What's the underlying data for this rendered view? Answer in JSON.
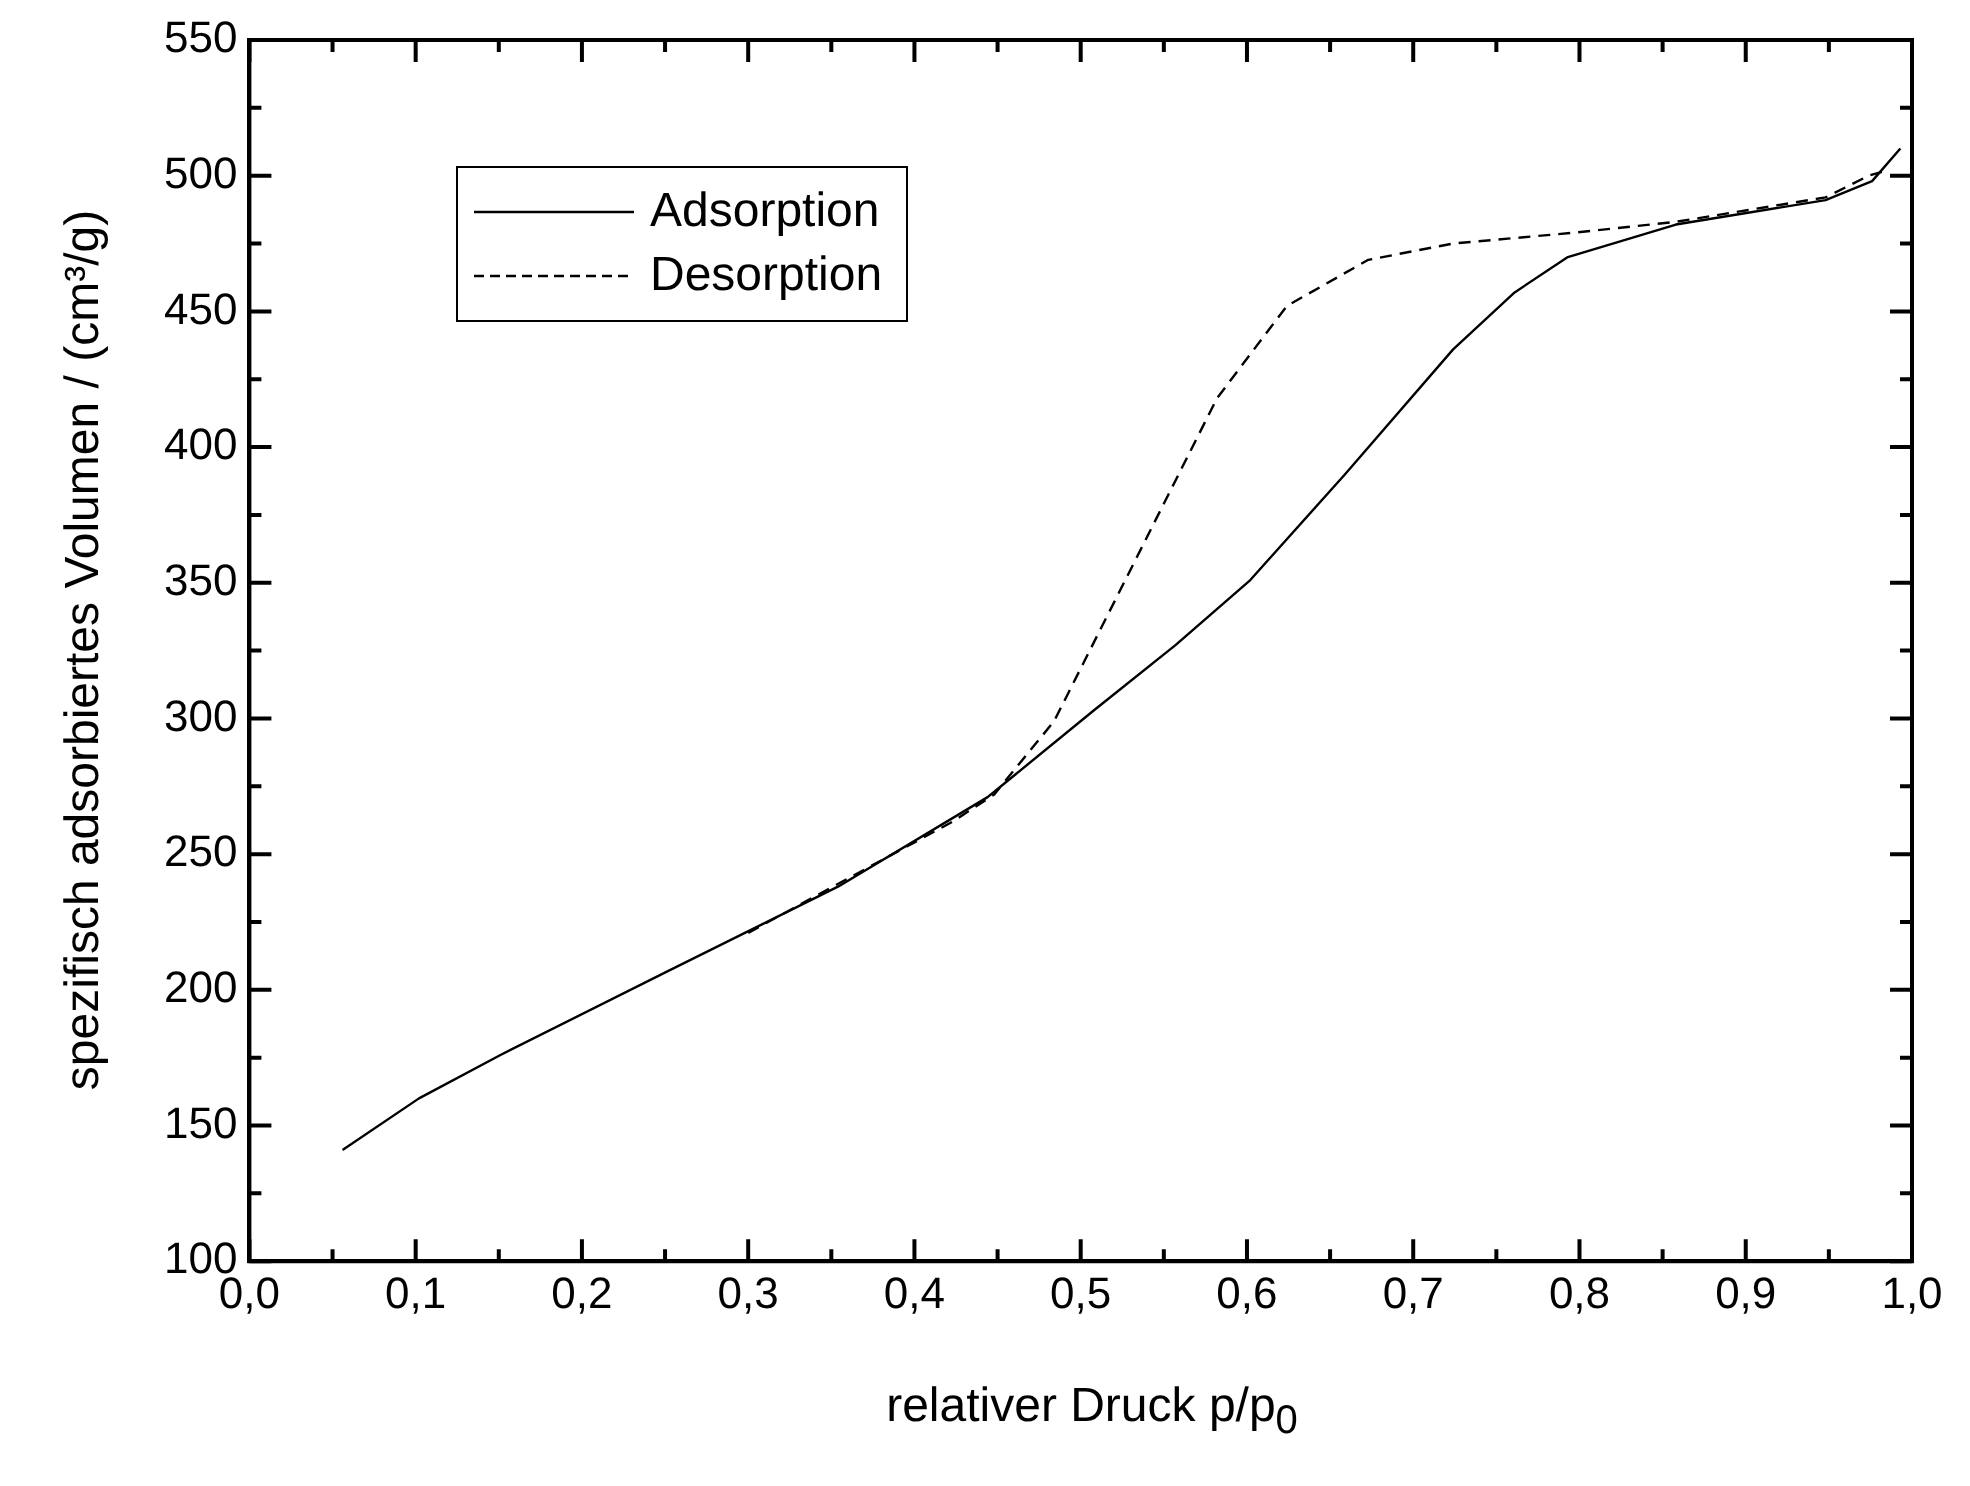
{
  "chart_data": {
    "type": "line",
    "xlabel": "relativer Druck p/p$_{0}$",
    "ylabel": "spezifisch adsorbiertes Volumen / (cm³/g)",
    "xlim": [
      0,
      1
    ],
    "ylim": [
      100,
      550
    ],
    "xticks": [
      {
        "value": 0,
        "label": "0,0"
      },
      {
        "value": 0.05,
        "label": null
      },
      {
        "value": 0.1,
        "label": "0,1"
      },
      {
        "value": 0.15,
        "label": null
      },
      {
        "value": 0.2,
        "label": "0,2"
      },
      {
        "value": 0.25,
        "label": null
      },
      {
        "value": 0.3,
        "label": "0,3"
      },
      {
        "value": 0.35,
        "label": null
      },
      {
        "value": 0.4,
        "label": "0,4"
      },
      {
        "value": 0.45,
        "label": null
      },
      {
        "value": 0.5,
        "label": "0,5"
      },
      {
        "value": 0.55,
        "label": null
      },
      {
        "value": 0.6,
        "label": "0,6"
      },
      {
        "value": 0.65,
        "label": null
      },
      {
        "value": 0.7,
        "label": "0,7"
      },
      {
        "value": 0.75,
        "label": null
      },
      {
        "value": 0.8,
        "label": "0,8"
      },
      {
        "value": 0.85,
        "label": null
      },
      {
        "value": 0.9,
        "label": "0,9"
      },
      {
        "value": 0.95,
        "label": null
      },
      {
        "value": 1,
        "label": "1,0"
      }
    ],
    "yticks": [
      100,
      {
        "value": 125,
        "label": null
      },
      150,
      {
        "value": 175,
        "label": null
      },
      200,
      {
        "value": 225,
        "label": null
      },
      250,
      {
        "value": 275,
        "label": null
      },
      300,
      {
        "value": 325,
        "label": null
      },
      350,
      {
        "value": 375,
        "label": null
      },
      400,
      {
        "value": 425,
        "label": null
      },
      450,
      {
        "value": 475,
        "label": null
      },
      500,
      {
        "value": 525,
        "label": null
      },
      550
    ],
    "grid": false,
    "legend": "top left",
    "marker": "none",
    "series": [
      {
        "name": "Adsorption",
        "color": "#000000",
        "line_style": "solid",
        "x": [
          0.056,
          0.102,
          0.151,
          0.252,
          0.354,
          0.444,
          0.508,
          0.557,
          0.602,
          0.659,
          0.724,
          0.761,
          0.793,
          0.858,
          0.948,
          0.976,
          0.993
        ],
        "values": [
          141,
          160,
          176,
          207,
          238,
          271,
          303,
          327,
          351,
          390,
          436,
          457,
          470,
          482,
          491,
          498,
          510
        ]
      },
      {
        "name": "Desorption",
        "color": "#000000",
        "line_style": "dashed",
        "x": [
          0.3,
          0.387,
          0.423,
          0.448,
          0.484,
          0.582,
          0.624,
          0.673,
          0.724,
          0.797,
          0.858,
          0.948,
          0.974,
          0.985
        ],
        "values": [
          221,
          250,
          262,
          272,
          299,
          418,
          452,
          469,
          475,
          479,
          483,
          492,
          500,
          502
        ]
      }
    ]
  }
}
